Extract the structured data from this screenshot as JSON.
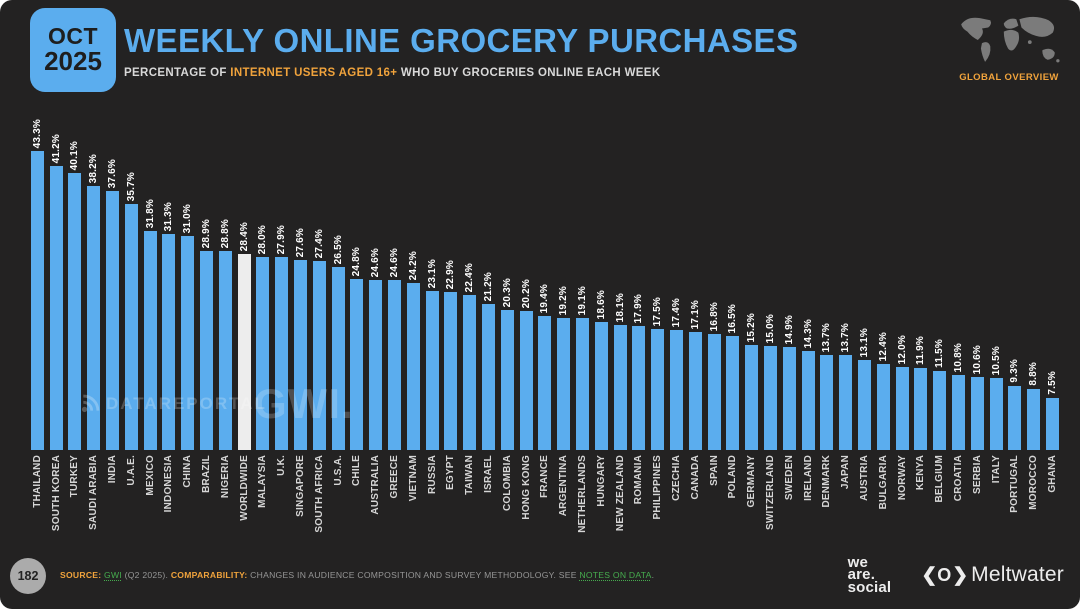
{
  "header": {
    "badge": {
      "month": "OCT",
      "year": "2025"
    },
    "title": "WEEKLY ONLINE GROCERY PURCHASES",
    "subtitle": {
      "prefix": "PERCENTAGE OF ",
      "highlight": "INTERNET USERS AGED 16+",
      "suffix": " WHO BUY GROCERIES ONLINE EACH WEEK"
    },
    "overview_label": "GLOBAL OVERVIEW"
  },
  "chart_data": {
    "type": "bar",
    "title": "WEEKLY ONLINE GROCERY PURCHASES",
    "ylabel": "% of internet users aged 16+ buying groceries online each week",
    "unit": "%",
    "ylim": [
      0,
      45
    ],
    "grid": false,
    "value_labels": "rotated 90deg above bars",
    "category_labels": "rotated 90deg below bars",
    "highlight_category": "WORLDWIDE",
    "categories": [
      "THAILAND",
      "SOUTH KOREA",
      "TURKEY",
      "SAUDI ARABIA",
      "INDIA",
      "U.A.E.",
      "MEXICO",
      "INDONESIA",
      "CHINA",
      "BRAZIL",
      "NIGERIA",
      "WORLDWIDE",
      "MALAYSIA",
      "U.K.",
      "SINGAPORE",
      "SOUTH AFRICA",
      "U.S.A.",
      "CHILE",
      "AUSTRALIA",
      "GREECE",
      "VIETNAM",
      "RUSSIA",
      "EGYPT",
      "TAIWAN",
      "ISRAEL",
      "COLOMBIA",
      "HONG KONG",
      "FRANCE",
      "ARGENTINA",
      "NETHERLANDS",
      "HUNGARY",
      "NEW ZEALAND",
      "ROMANIA",
      "PHILIPPINES",
      "CZECHIA",
      "CANADA",
      "SPAIN",
      "POLAND",
      "GERMANY",
      "SWITZERLAND",
      "SWEDEN",
      "IRELAND",
      "DENMARK",
      "JAPAN",
      "AUSTRIA",
      "BULGARIA",
      "NORWAY",
      "KENYA",
      "BELGIUM",
      "CROATIA",
      "SERBIA",
      "ITALY",
      "PORTUGAL",
      "MOROCCO",
      "GHANA"
    ],
    "values": [
      43.3,
      41.2,
      40.1,
      38.2,
      37.6,
      35.7,
      31.8,
      31.3,
      31.0,
      28.9,
      28.8,
      28.4,
      28.0,
      27.9,
      27.6,
      27.4,
      26.5,
      24.8,
      24.6,
      24.6,
      24.2,
      23.1,
      22.9,
      22.4,
      21.2,
      20.3,
      20.2,
      19.4,
      19.2,
      19.1,
      18.6,
      18.1,
      17.9,
      17.5,
      17.4,
      17.1,
      16.8,
      16.5,
      15.2,
      15.0,
      14.9,
      14.3,
      13.7,
      13.7,
      13.1,
      12.4,
      12.0,
      11.9,
      11.5,
      10.8,
      10.6,
      10.5,
      9.3,
      8.8,
      7.5
    ]
  },
  "watermarks": {
    "datareportal": "DATAREPORTAL",
    "gwi": "GWI."
  },
  "footer": {
    "page_number": "182",
    "source": {
      "label": "SOURCE:",
      "link": "GWI",
      "detail": " (Q2 2025). ",
      "comparability_label": "COMPARABILITY:",
      "comparability_text": " CHANGES IN AUDIENCE COMPOSITION AND SURVEY METHODOLOGY. SEE ",
      "notes_link": "NOTES ON DATA",
      "end": "."
    },
    "logos": {
      "we_are_social": [
        "we",
        "are.",
        "social"
      ],
      "meltwater": "Meltwater"
    }
  },
  "colors": {
    "accent_blue": "#5BADEE",
    "accent_orange": "#F0A33C",
    "accent_green": "#46AC4E",
    "bar": "#5BADEE",
    "bar_highlight": "#EDEDED",
    "background": "#232222"
  }
}
